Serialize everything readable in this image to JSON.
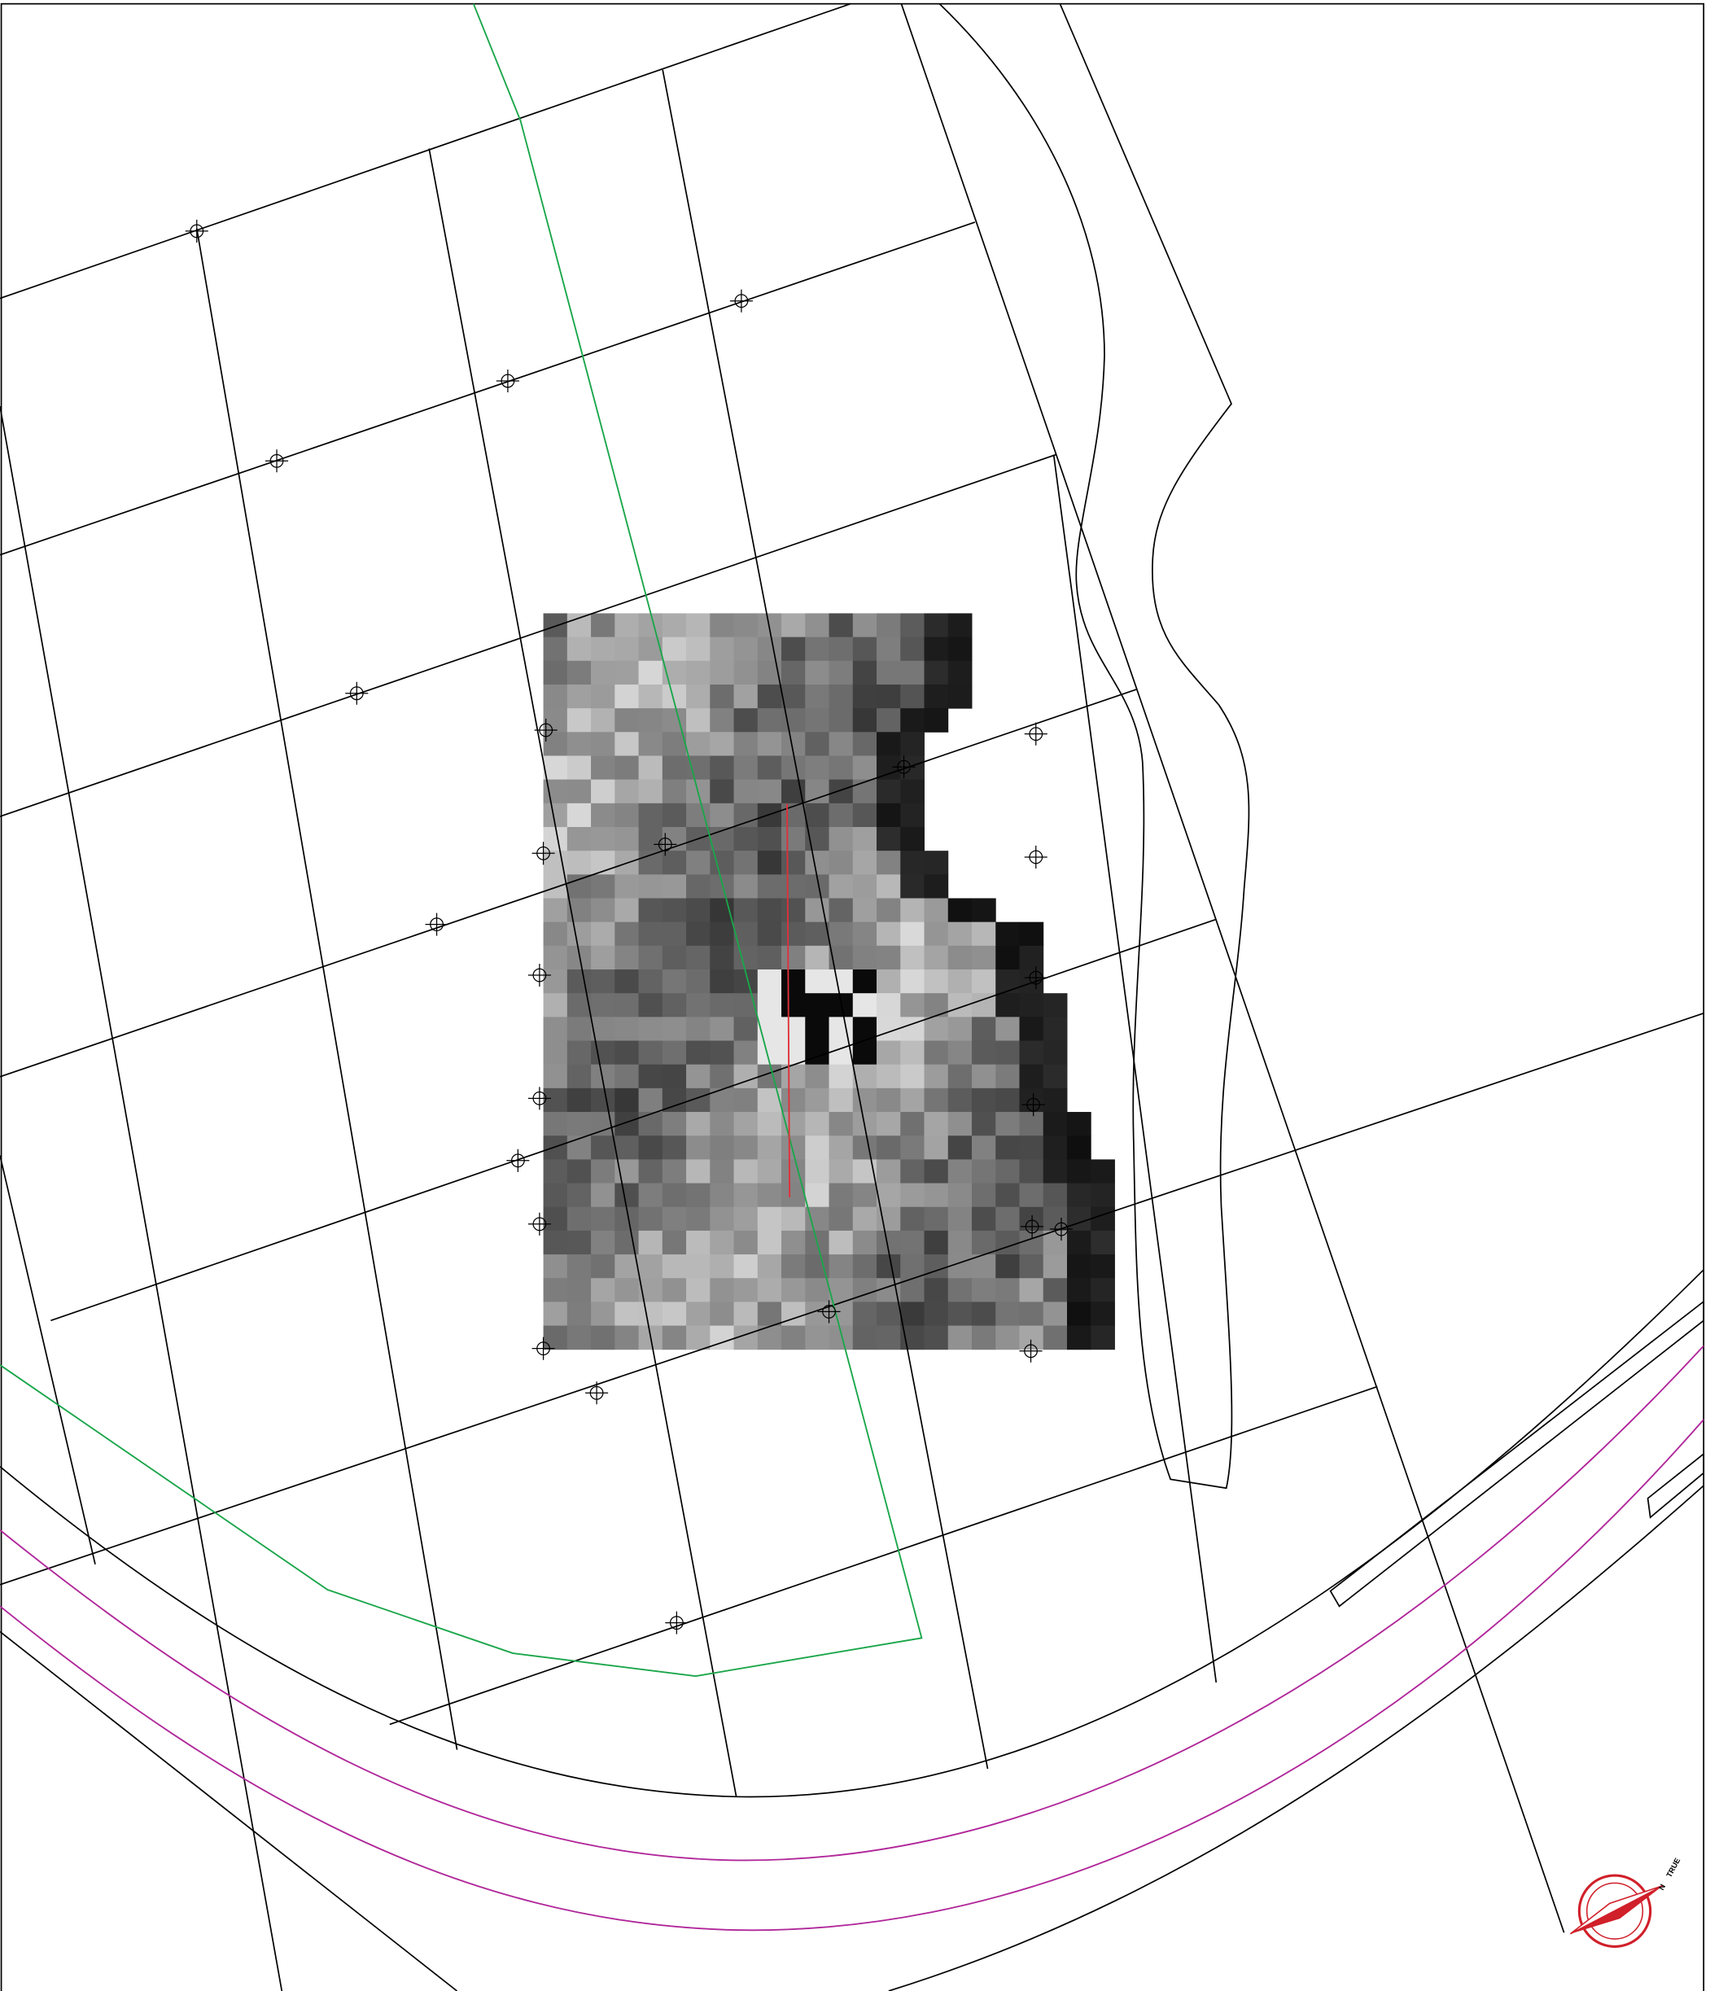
{
  "compass": {
    "true_label": "TRUE",
    "north_label": "N"
  }
}
